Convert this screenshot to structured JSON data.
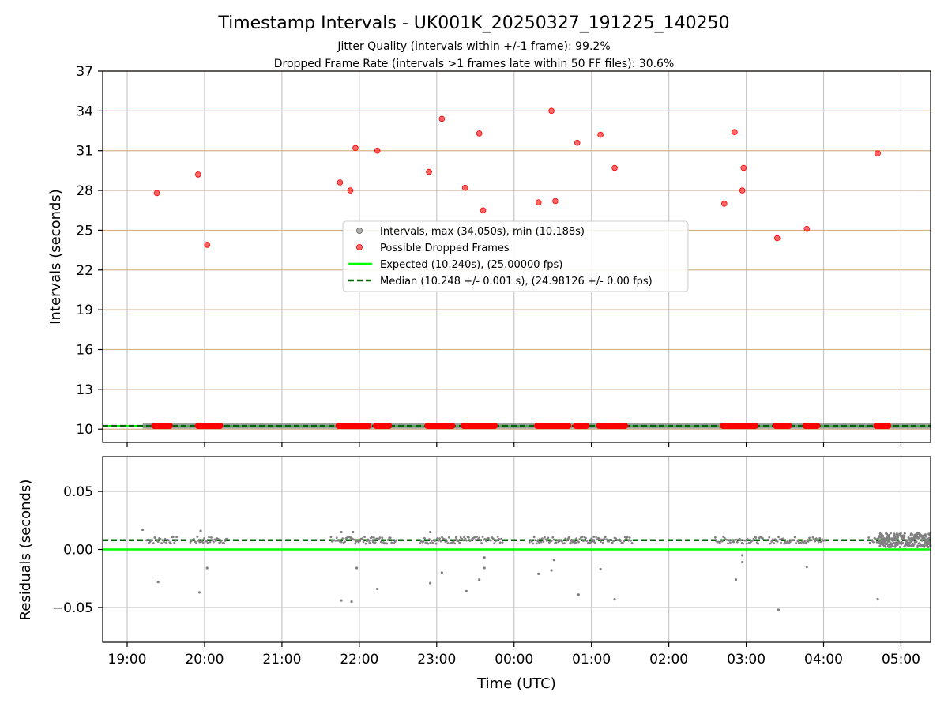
{
  "figure": {
    "title": "Timestamp Intervals - UK001K_20250327_191225_140250",
    "subtitle_1": "Jitter Quality (intervals within +/-1 frame): 99.2%",
    "subtitle_2": "Dropped Frame Rate (intervals >1 frames late within 50 FF files): 30.6%",
    "xlabel": "Time (UTC)"
  },
  "chart_data": [
    {
      "type": "scatter",
      "name": "intervals",
      "ylabel": "Intervals (seconds)",
      "x_type": "time",
      "xlim": [
        "2025-03-27T18:41:00Z",
        "2025-03-28T05:23:00Z"
      ],
      "ylim": [
        9.0,
        37.0
      ],
      "yticks": [
        10,
        13,
        16,
        19,
        22,
        25,
        28,
        31,
        34,
        37
      ],
      "xticks": [
        "19:00",
        "20:00",
        "21:00",
        "22:00",
        "23:00",
        "00:00",
        "01:00",
        "02:00",
        "03:00",
        "04:00",
        "05:00"
      ],
      "grid": "on",
      "legend_placement": "center",
      "colors": {
        "intervals": "#808080",
        "dropped": "#ff0000",
        "expected": "#00ff00",
        "median": "#006400",
        "hgrid": "#d2b48c",
        "vgrid": "#c8c8c8"
      },
      "legend": [
        "Intervals, max (34.050s), min (10.188s)",
        "Possible Dropped Frames",
        "Expected (10.240s), (25.00000 fps)",
        "Median (10.248 +/- 0.001 s), (24.98126 +/- 0.00 fps)"
      ],
      "expected_value": 10.24,
      "median_value": 10.248,
      "intervals_span": {
        "start": "19:12",
        "end": "05:23",
        "value": 10.248
      },
      "dropped_frames": [
        {
          "t": "19:23",
          "v": 27.8
        },
        {
          "t": "19:55",
          "v": 29.2
        },
        {
          "t": "20:02",
          "v": 23.9
        },
        {
          "t": "21:45",
          "v": 28.6
        },
        {
          "t": "21:53",
          "v": 28.0
        },
        {
          "t": "21:57",
          "v": 31.2
        },
        {
          "t": "22:14",
          "v": 31.0
        },
        {
          "t": "22:54",
          "v": 29.4
        },
        {
          "t": "23:04",
          "v": 33.4
        },
        {
          "t": "23:22",
          "v": 28.2
        },
        {
          "t": "23:33",
          "v": 32.3
        },
        {
          "t": "23:36",
          "v": 26.5
        },
        {
          "t": "00:19",
          "v": 27.1
        },
        {
          "t": "00:29",
          "v": 34.0
        },
        {
          "t": "00:32",
          "v": 27.2
        },
        {
          "t": "00:49",
          "v": 31.6
        },
        {
          "t": "01:07",
          "v": 32.2
        },
        {
          "t": "01:18",
          "v": 29.7
        },
        {
          "t": "02:43",
          "v": 27.0
        },
        {
          "t": "02:51",
          "v": 32.4
        },
        {
          "t": "02:57",
          "v": 28.0
        },
        {
          "t": "02:58",
          "v": 29.7
        },
        {
          "t": "03:24",
          "v": 24.4
        },
        {
          "t": "03:47",
          "v": 25.1
        },
        {
          "t": "04:42",
          "v": 30.8
        }
      ],
      "dropped_baseline_clusters": [
        {
          "start": "19:21",
          "end": "19:33"
        },
        {
          "start": "19:55",
          "end": "20:12"
        },
        {
          "start": "21:44",
          "end": "22:07"
        },
        {
          "start": "22:13",
          "end": "22:23"
        },
        {
          "start": "22:53",
          "end": "23:12"
        },
        {
          "start": "23:21",
          "end": "23:45"
        },
        {
          "start": "00:18",
          "end": "00:42"
        },
        {
          "start": "00:48",
          "end": "00:56"
        },
        {
          "start": "01:06",
          "end": "01:26"
        },
        {
          "start": "02:42",
          "end": "03:07"
        },
        {
          "start": "03:23",
          "end": "03:33"
        },
        {
          "start": "03:46",
          "end": "03:55"
        },
        {
          "start": "04:41",
          "end": "04:50"
        }
      ]
    },
    {
      "type": "scatter",
      "name": "residuals",
      "ylabel": "Residuals (seconds)",
      "x_type": "time",
      "ylim": [
        -0.08,
        0.08
      ],
      "yticks": [
        0.05,
        0.0,
        -0.05
      ],
      "ytick_labels": [
        "0.05",
        "0.00",
        "−0.05"
      ],
      "grid": "on",
      "expected_value": 0.0,
      "median_value": 0.008,
      "residual_baseline": 0.008,
      "dense_cluster": {
        "start": "04:43",
        "end": "05:23"
      },
      "outliers": [
        {
          "t": "19:12",
          "v": 0.017
        },
        {
          "t": "19:24",
          "v": -0.028
        },
        {
          "t": "19:56",
          "v": -0.037
        },
        {
          "t": "19:57",
          "v": 0.016
        },
        {
          "t": "20:02",
          "v": -0.016
        },
        {
          "t": "21:46",
          "v": -0.044
        },
        {
          "t": "21:46",
          "v": 0.015
        },
        {
          "t": "21:54",
          "v": -0.045
        },
        {
          "t": "21:55",
          "v": 0.015
        },
        {
          "t": "21:58",
          "v": -0.016
        },
        {
          "t": "22:14",
          "v": -0.034
        },
        {
          "t": "22:55",
          "v": -0.029
        },
        {
          "t": "22:55",
          "v": 0.015
        },
        {
          "t": "23:04",
          "v": -0.02
        },
        {
          "t": "23:23",
          "v": -0.036
        },
        {
          "t": "23:33",
          "v": -0.026
        },
        {
          "t": "23:37",
          "v": -0.016
        },
        {
          "t": "23:37",
          "v": -0.007
        },
        {
          "t": "00:19",
          "v": -0.021
        },
        {
          "t": "00:29",
          "v": -0.018
        },
        {
          "t": "00:31",
          "v": -0.009
        },
        {
          "t": "00:50",
          "v": -0.039
        },
        {
          "t": "01:07",
          "v": -0.017
        },
        {
          "t": "01:18",
          "v": -0.043
        },
        {
          "t": "02:52",
          "v": -0.026
        },
        {
          "t": "02:57",
          "v": -0.011
        },
        {
          "t": "02:57",
          "v": -0.005
        },
        {
          "t": "03:25",
          "v": -0.052
        },
        {
          "t": "03:47",
          "v": -0.015
        },
        {
          "t": "04:42",
          "v": -0.043
        }
      ]
    }
  ]
}
